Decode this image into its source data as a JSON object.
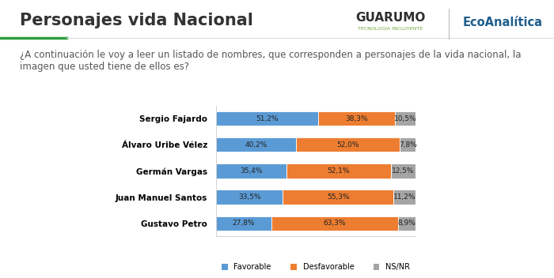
{
  "chart_data": {
    "type": "bar",
    "orientation": "horizontal",
    "stacked": true,
    "title": "Personajes vida Nacional",
    "subtitle": "¿A continuación le voy a leer un listado de nombres, que corresponden a personajes de la vida nacional, la imagen que usted tiene de ellos es?",
    "annotations": [
      "GUARUMO",
      "TECNOLOGIA INCLUYENTE",
      "EcoAnalítica"
    ],
    "categories": [
      "Sergio Fajardo",
      "Álvaro Uribe Vélez",
      "Germán Vargas",
      "Juan Manuel Santos",
      "Gustavo Petro"
    ],
    "series": [
      {
        "name": "Favorable",
        "color": "#5B9BD5",
        "values": [
          51.2,
          40.2,
          35.4,
          33.5,
          27.8
        ],
        "value_labels": [
          "51,2%",
          "40,2%",
          "35,4%",
          "33,5%",
          "27,8%"
        ]
      },
      {
        "name": "Desfavorable",
        "color": "#ED7D31",
        "values": [
          38.3,
          52.0,
          52.1,
          55.3,
          63.3
        ],
        "value_labels": [
          "38,3%",
          "52,0%",
          "52,1%",
          "55,3%",
          "63,3%"
        ]
      },
      {
        "name": "NS/NR",
        "color": "#A5A5A5",
        "values": [
          10.5,
          7.8,
          12.5,
          11.2,
          8.9
        ],
        "value_labels": [
          "10,5%",
          "7,8%",
          "12,5%",
          "11,2%",
          "8,9%"
        ]
      }
    ],
    "xlim": [
      0,
      100
    ],
    "xticks": [],
    "tick_labels": "y",
    "data_labels": true,
    "legend": "lower center",
    "grid": false
  }
}
